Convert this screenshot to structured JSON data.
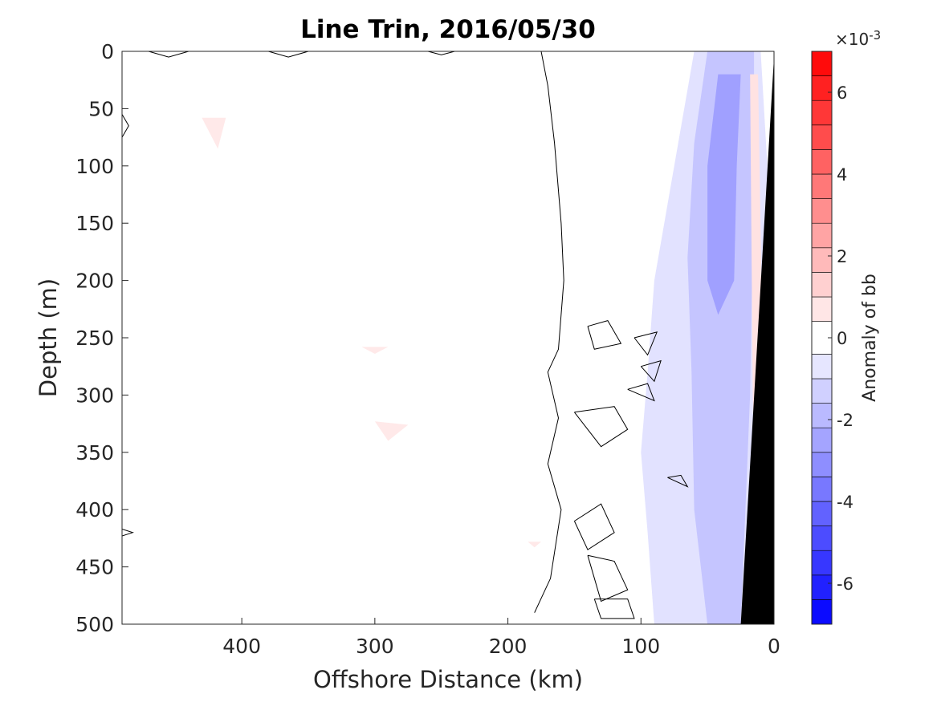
{
  "chart_data": {
    "type": "heatmap",
    "subtype": "filled-contour section",
    "title": "Line Trin, 2016/05/30",
    "xlabel": "Offshore Distance (km)",
    "ylabel": "Depth (m)",
    "xlim": [
      490,
      0
    ],
    "ylim": [
      500,
      0
    ],
    "x_reversed": true,
    "y_reversed": true,
    "xticks": [
      400,
      300,
      200,
      100,
      0
    ],
    "yticks": [
      0,
      50,
      100,
      150,
      200,
      250,
      300,
      350,
      400,
      450,
      500
    ],
    "colorbar": {
      "label": "Anomaly of bb",
      "multiplier_label": "×10",
      "multiplier_exponent": "-3",
      "limits": [
        -7,
        7
      ],
      "levels": [
        -7,
        -6.4,
        -5.8,
        -5.2,
        -4.6,
        -4.0,
        -3.4,
        -2.8,
        -2.2,
        -1.6,
        -1.0,
        -0.4,
        0.4,
        1.0,
        1.6,
        2.2,
        2.8,
        3.4,
        4.0,
        4.6,
        5.2,
        5.8,
        6.4,
        7
      ],
      "ticks": [
        -6,
        -4,
        -2,
        0,
        2,
        4,
        6
      ],
      "colors": {
        "negative": "#0000ff",
        "zero": "#ffffff",
        "positive": "#ff0000"
      }
    },
    "zero_contour_color": "#000000",
    "bathymetry": {
      "color": "#000000",
      "polygon": [
        [
          0,
          0
        ],
        [
          0,
          500
        ],
        [
          25,
          500
        ],
        [
          0,
          5
        ]
      ]
    },
    "anomaly_regions": [
      {
        "name": "coastal-negative-band-outer",
        "value": -0.8,
        "polygon": [
          [
            10,
            0
          ],
          [
            60,
            0
          ],
          [
            72,
            80
          ],
          [
            90,
            200
          ],
          [
            95,
            280
          ],
          [
            100,
            350
          ],
          [
            95,
            420
          ],
          [
            90,
            500
          ],
          [
            20,
            500
          ],
          [
            5,
            300
          ],
          [
            5,
            100
          ]
        ]
      },
      {
        "name": "coastal-negative-band-mid",
        "value": -1.6,
        "polygon": [
          [
            15,
            0
          ],
          [
            50,
            0
          ],
          [
            60,
            80
          ],
          [
            65,
            180
          ],
          [
            62,
            280
          ],
          [
            60,
            400
          ],
          [
            50,
            500
          ],
          [
            25,
            500
          ],
          [
            18,
            300
          ],
          [
            15,
            100
          ]
        ]
      },
      {
        "name": "coastal-negative-core",
        "value": -2.6,
        "polygon": [
          [
            25,
            20
          ],
          [
            42,
            20
          ],
          [
            50,
            100
          ],
          [
            50,
            200
          ],
          [
            42,
            230
          ],
          [
            30,
            200
          ],
          [
            28,
            100
          ]
        ]
      },
      {
        "name": "nearshore-positive-sliver",
        "value": 0.8,
        "polygon": [
          [
            12,
            20
          ],
          [
            18,
            20
          ],
          [
            16,
            300
          ],
          [
            12,
            450
          ],
          [
            8,
            300
          ]
        ]
      },
      {
        "name": "patch-positive-1",
        "value": 0.6,
        "polygon": [
          [
            430,
            58
          ],
          [
            412,
            58
          ],
          [
            418,
            85
          ]
        ]
      },
      {
        "name": "patch-positive-2",
        "value": 0.6,
        "polygon": [
          [
            310,
            258
          ],
          [
            290,
            258
          ],
          [
            300,
            264
          ]
        ]
      },
      {
        "name": "patch-positive-3",
        "value": 0.6,
        "polygon": [
          [
            300,
            323
          ],
          [
            275,
            326
          ],
          [
            290,
            340
          ]
        ]
      },
      {
        "name": "patch-positive-4",
        "value": 0.6,
        "polygon": [
          [
            185,
            428
          ],
          [
            175,
            428
          ],
          [
            180,
            433
          ]
        ]
      }
    ],
    "zero_contours": [
      [
        [
          175,
          0
        ],
        [
          170,
          30
        ],
        [
          165,
          80
        ],
        [
          160,
          150
        ],
        [
          158,
          200
        ],
        [
          162,
          260
        ],
        [
          170,
          280
        ],
        [
          162,
          320
        ],
        [
          170,
          360
        ],
        [
          160,
          400
        ],
        [
          168,
          460
        ],
        [
          180,
          490
        ]
      ],
      [
        [
          470,
          0
        ],
        [
          455,
          5
        ],
        [
          440,
          0
        ]
      ],
      [
        [
          380,
          0
        ],
        [
          365,
          5
        ],
        [
          350,
          0
        ]
      ],
      [
        [
          260,
          0
        ],
        [
          250,
          3
        ],
        [
          240,
          0
        ]
      ],
      [
        [
          490,
          55
        ],
        [
          485,
          65
        ],
        [
          490,
          75
        ]
      ],
      [
        [
          490,
          417
        ],
        [
          482,
          420
        ],
        [
          490,
          423
        ]
      ],
      [
        [
          140,
          240
        ],
        [
          125,
          235
        ],
        [
          115,
          255
        ],
        [
          135,
          260
        ],
        [
          140,
          240
        ]
      ],
      [
        [
          105,
          250
        ],
        [
          88,
          245
        ],
        [
          95,
          265
        ],
        [
          105,
          250
        ]
      ],
      [
        [
          100,
          275
        ],
        [
          85,
          270
        ],
        [
          90,
          288
        ],
        [
          100,
          275
        ]
      ],
      [
        [
          110,
          295
        ],
        [
          95,
          290
        ],
        [
          90,
          305
        ],
        [
          110,
          295
        ]
      ],
      [
        [
          150,
          315
        ],
        [
          120,
          310
        ],
        [
          110,
          330
        ],
        [
          130,
          345
        ],
        [
          150,
          315
        ]
      ],
      [
        [
          80,
          372
        ],
        [
          70,
          370
        ],
        [
          65,
          380
        ],
        [
          80,
          372
        ]
      ],
      [
        [
          150,
          410
        ],
        [
          130,
          395
        ],
        [
          120,
          420
        ],
        [
          140,
          435
        ],
        [
          150,
          410
        ]
      ],
      [
        [
          140,
          440
        ],
        [
          120,
          445
        ],
        [
          110,
          470
        ],
        [
          130,
          480
        ],
        [
          140,
          440
        ]
      ],
      [
        [
          135,
          478
        ],
        [
          110,
          478
        ],
        [
          105,
          495
        ],
        [
          130,
          495
        ],
        [
          135,
          478
        ]
      ]
    ]
  }
}
